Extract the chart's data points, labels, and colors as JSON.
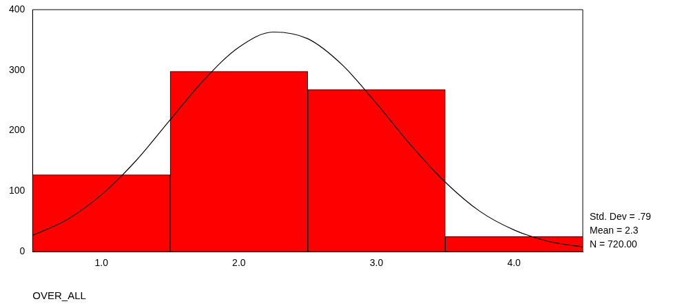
{
  "chart_data": {
    "type": "histogram",
    "xlabel": "OVER_ALL",
    "bins": [
      0.5,
      1.5,
      2.5,
      3.5,
      4.5
    ],
    "series": [
      {
        "color": "#ff0000",
        "values": [
          127,
          298,
          268,
          25
        ]
      },
      {
        "type": "line",
        "color": "#000000",
        "marker": "none",
        "x": [
          0.5,
          0.75,
          1.0,
          1.25,
          1.5,
          1.75,
          2.0,
          2.25,
          2.5,
          2.75,
          3.0,
          3.25,
          3.5,
          3.75,
          4.0,
          4.25,
          4.5
        ],
        "values": [
          27,
          53,
          94,
          150,
          218,
          285,
          338,
          363,
          352,
          309,
          245,
          176,
          115,
          67,
          36,
          17,
          8
        ]
      }
    ],
    "xlim": [
      0.5,
      4.5
    ],
    "xticks": [
      {
        "value": 1,
        "label": "1.0"
      },
      {
        "value": 2,
        "label": "2.0"
      },
      {
        "value": 3,
        "label": "3.0"
      },
      {
        "value": 4,
        "label": "4.0"
      }
    ],
    "ylim": [
      0,
      400
    ],
    "yticks": [
      0,
      100,
      200,
      300,
      400
    ],
    "grid": false,
    "legend": false,
    "annotations": [
      "Std. Dev = .79",
      "Mean = 2.3",
      "N = 720.00"
    ]
  }
}
